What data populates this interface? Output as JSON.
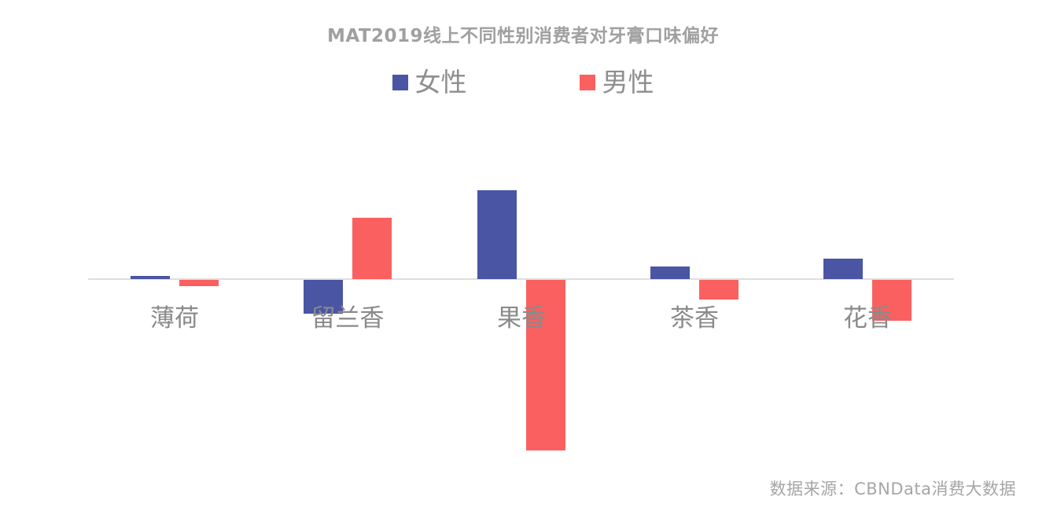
{
  "title": "MAT2019线上不同性别消费者对牙膏口味偏好",
  "source_note": "数据来源：CBNData消费大数据",
  "colors": {
    "female_bar": "#4A55A4",
    "male_bar": "#FA6060",
    "axis_line": "#DEDEDE",
    "title_text": "#A0A0A0",
    "category_text": "#8A8A8A",
    "legend_text": "#8E8E8E",
    "source_text": "#A6A6A6",
    "background": "#FFFFFF"
  },
  "legend": {
    "items": [
      {
        "key": "female",
        "label": "女性",
        "color": "#4A55A4"
      },
      {
        "key": "male",
        "label": "男性",
        "color": "#FA6060"
      }
    ],
    "position": "top-center"
  },
  "chart_data": {
    "type": "bar",
    "title": "MAT2019线上不同性别消费者对牙膏口味偏好",
    "categories": [
      "薄荷",
      "留兰香",
      "果香",
      "茶香",
      "花香"
    ],
    "series": [
      {
        "key": "female",
        "name": "女性",
        "color": "#4A55A4",
        "values": [
          4,
          -43,
          113,
          16,
          26
        ]
      },
      {
        "key": "male",
        "name": "男性",
        "color": "#FA6060",
        "values": [
          -8,
          78,
          -217,
          -25,
          -52
        ]
      }
    ],
    "xlabel": "",
    "ylabel": "",
    "value_axis_note": "no numeric axis or data labels shown; values are relative preference estimated from bar pixel heights",
    "ylim": [
      -230,
      125
    ],
    "grid": false,
    "baseline": 0,
    "legend_position": "top-center",
    "source": "数据来源：CBNData消费大数据"
  }
}
